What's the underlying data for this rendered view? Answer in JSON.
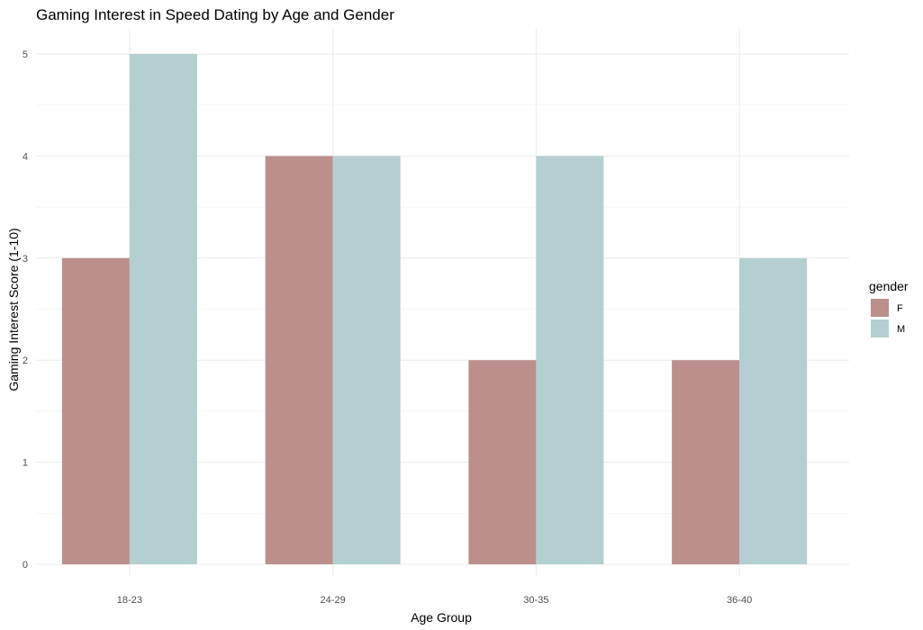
{
  "chart_data": {
    "type": "bar",
    "title": "Gaming Interest in Speed Dating by Age and Gender",
    "xlabel": "Age Group",
    "ylabel": "Gaming Interest Score (1-10)",
    "categories": [
      "18-23",
      "24-29",
      "30-35",
      "36-40"
    ],
    "series": [
      {
        "name": "F",
        "values": [
          3,
          4,
          2,
          2
        ],
        "color": "#bc8f8c"
      },
      {
        "name": "M",
        "values": [
          5,
          4,
          4,
          3
        ],
        "color": "#b4cfcf"
      }
    ],
    "ylim": [
      0,
      5
    ],
    "yticks": [
      0,
      1,
      2,
      3,
      4,
      5
    ],
    "grid": true,
    "legend": {
      "title": "gender",
      "position": "right"
    }
  }
}
